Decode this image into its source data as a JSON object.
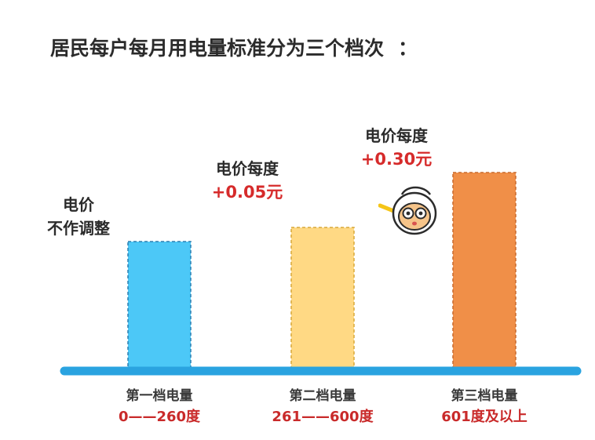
{
  "title": {
    "main": "居民每户每月用电量标准分为",
    "highlight": "三个档次",
    "colon": "："
  },
  "chart_data": {
    "type": "bar",
    "categories": [
      "第一档电量",
      "第二档电量",
      "第三档电量"
    ],
    "ranges": [
      "0——260度",
      "261——600度",
      "601度及以上"
    ],
    "values": [
      1,
      2,
      3
    ],
    "bar_colors": [
      "#4cc8f7",
      "#ffd984",
      "#f08f48"
    ],
    "annotations": [
      {
        "line1": "电价",
        "line2": "不作调整"
      },
      {
        "line1": "电价每度",
        "line2": "+0.05元"
      },
      {
        "line1": "电价每度",
        "line2": "+0.30元"
      }
    ],
    "baseline_color": "#2aa3e0"
  },
  "mascot": {
    "icon": "cartoon-face-icon"
  }
}
